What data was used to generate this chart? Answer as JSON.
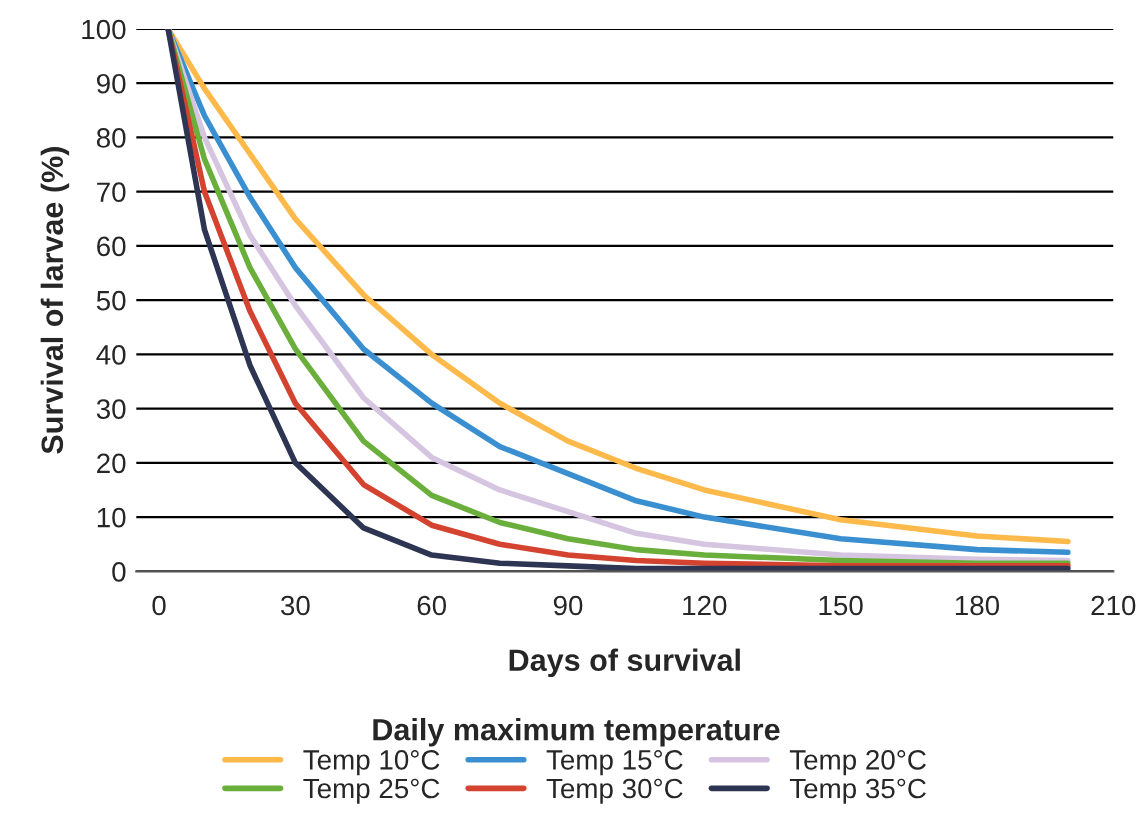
{
  "chart_data": {
    "type": "line",
    "xlabel": "Days of survival",
    "ylabel": "Survival of larvae (%)",
    "legend_title": "Daily maximum temperature",
    "x": [
      2,
      10,
      20,
      30,
      45,
      60,
      75,
      90,
      105,
      120,
      150,
      180,
      200
    ],
    "series": [
      {
        "name": "Temp 10°C",
        "color": "#fdb94a",
        "values": [
          100,
          89,
          77,
          65,
          51,
          40,
          31,
          24,
          19,
          15,
          9.5,
          6.5,
          5.5
        ]
      },
      {
        "name": "Temp 15°C",
        "color": "#3a8fd0",
        "values": [
          100,
          84,
          69,
          56,
          41,
          31,
          23,
          18,
          13,
          10,
          6,
          4,
          3.5
        ]
      },
      {
        "name": "Temp 20°C",
        "color": "#d5c5e0",
        "values": [
          100,
          80,
          62,
          49,
          32,
          21,
          15,
          11,
          7,
          5,
          3,
          2.2,
          2
        ]
      },
      {
        "name": "Temp 25°C",
        "color": "#6aaf3c",
        "values": [
          100,
          76,
          56,
          41,
          24,
          14,
          9,
          6,
          4,
          3,
          2,
          1.5,
          1.5
        ]
      },
      {
        "name": "Temp 30°C",
        "color": "#d4432f",
        "values": [
          100,
          70,
          48,
          31,
          16,
          8.5,
          5,
          3,
          2,
          1.5,
          1,
          1,
          1
        ]
      },
      {
        "name": "Temp 35°C",
        "color": "#2e3553",
        "values": [
          100,
          63,
          38,
          20,
          8,
          3,
          1.5,
          1,
          0.5,
          0.5,
          0.5,
          0.5,
          0.5
        ]
      }
    ],
    "xlim": [
      -5,
      210
    ],
    "xticks": [
      0,
      30,
      60,
      90,
      120,
      150,
      180,
      210
    ],
    "ylim": [
      0,
      100
    ],
    "yticks": [
      0,
      10,
      20,
      30,
      40,
      50,
      60,
      70,
      80,
      90,
      100
    ],
    "grid": "y",
    "legend": "bottom",
    "marker": "none",
    "line_style": "solid"
  }
}
